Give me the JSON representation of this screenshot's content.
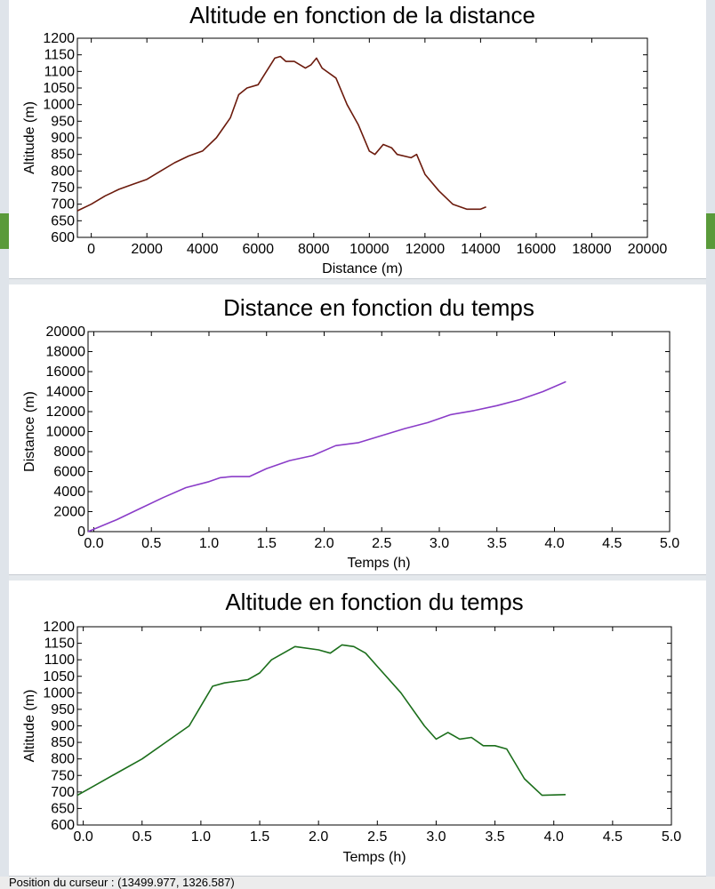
{
  "status_bar": {
    "cursor_position": "Position du curseur : (13499.977, 1326.587)"
  },
  "colors": {
    "series_altitude_distance": "#6b1a0c",
    "series_distance_temps": "#8a3cc8",
    "series_altitude_temps": "#1b6e1b"
  },
  "chart_data": [
    {
      "type": "line",
      "title": "Altitude en fonction de la distance",
      "xlabel": "Distance (m)",
      "ylabel": "Altitude (m)",
      "xlim": [
        -500,
        20000
      ],
      "ylim": [
        600,
        1200
      ],
      "xticks": [
        0,
        2000,
        4000,
        6000,
        8000,
        10000,
        12000,
        14000,
        16000,
        18000,
        20000
      ],
      "yticks": [
        600,
        650,
        700,
        750,
        800,
        850,
        900,
        950,
        1000,
        1050,
        1100,
        1150,
        1200
      ],
      "grid": false,
      "series": [
        {
          "x": [
            -500,
            0,
            500,
            1000,
            1500,
            2000,
            2500,
            3000,
            3500,
            4000,
            4500,
            5000,
            5300,
            5600,
            6000,
            6300,
            6600,
            6800,
            7000,
            7300,
            7700,
            7900,
            8100,
            8300,
            8800,
            9200,
            9600,
            10000,
            10200,
            10500,
            10800,
            11000,
            11500,
            11700,
            12000,
            12500,
            13000,
            13500,
            14000,
            14200
          ],
          "y": [
            680,
            700,
            725,
            745,
            760,
            775,
            800,
            825,
            845,
            860,
            900,
            960,
            1030,
            1050,
            1060,
            1100,
            1140,
            1145,
            1130,
            1130,
            1110,
            1120,
            1140,
            1110,
            1080,
            1000,
            940,
            860,
            850,
            880,
            870,
            850,
            840,
            850,
            790,
            740,
            700,
            685,
            685,
            692
          ]
        }
      ]
    },
    {
      "type": "line",
      "title": "Distance en fonction du temps",
      "xlabel": "Temps (h)",
      "ylabel": "Distance (m)",
      "xlim": [
        -0.05,
        5.0
      ],
      "ylim": [
        0,
        20000
      ],
      "xticks": [
        0.0,
        0.5,
        1.0,
        1.5,
        2.0,
        2.5,
        3.0,
        3.5,
        4.0,
        4.5,
        5.0
      ],
      "yticks": [
        0,
        2000,
        4000,
        6000,
        8000,
        10000,
        12000,
        14000,
        16000,
        18000,
        20000
      ],
      "grid": false,
      "series": [
        {
          "x": [
            -0.05,
            0.2,
            0.4,
            0.6,
            0.8,
            1.0,
            1.1,
            1.2,
            1.35,
            1.5,
            1.7,
            1.9,
            2.1,
            2.3,
            2.5,
            2.7,
            2.9,
            3.1,
            3.3,
            3.5,
            3.7,
            3.9,
            4.1
          ],
          "y": [
            0,
            1200,
            2300,
            3400,
            4400,
            5000,
            5400,
            5500,
            5500,
            6300,
            7100,
            7600,
            8600,
            8900,
            9600,
            10300,
            10900,
            11700,
            12100,
            12600,
            13200,
            14000,
            15000
          ]
        }
      ]
    },
    {
      "type": "line",
      "title": "Altitude en fonction du temps",
      "xlabel": "Temps (h)",
      "ylabel": "Altitude (m)",
      "xlim": [
        -0.05,
        5.0
      ],
      "ylim": [
        600,
        1200
      ],
      "xticks": [
        0.0,
        0.5,
        1.0,
        1.5,
        2.0,
        2.5,
        3.0,
        3.5,
        4.0,
        4.5,
        5.0
      ],
      "yticks": [
        600,
        650,
        700,
        750,
        800,
        850,
        900,
        950,
        1000,
        1050,
        1100,
        1150,
        1200
      ],
      "grid": false,
      "series": [
        {
          "x": [
            -0.05,
            0.1,
            0.3,
            0.5,
            0.7,
            0.9,
            1.0,
            1.1,
            1.2,
            1.4,
            1.5,
            1.6,
            1.8,
            2.0,
            2.1,
            2.2,
            2.3,
            2.4,
            2.5,
            2.7,
            2.9,
            3.0,
            3.1,
            3.2,
            3.3,
            3.4,
            3.5,
            3.6,
            3.75,
            3.9,
            4.1
          ],
          "y": [
            690,
            720,
            760,
            800,
            850,
            900,
            960,
            1020,
            1030,
            1040,
            1060,
            1100,
            1140,
            1130,
            1120,
            1145,
            1140,
            1120,
            1080,
            1000,
            900,
            860,
            880,
            860,
            865,
            840,
            840,
            830,
            740,
            690,
            692
          ]
        }
      ]
    }
  ]
}
